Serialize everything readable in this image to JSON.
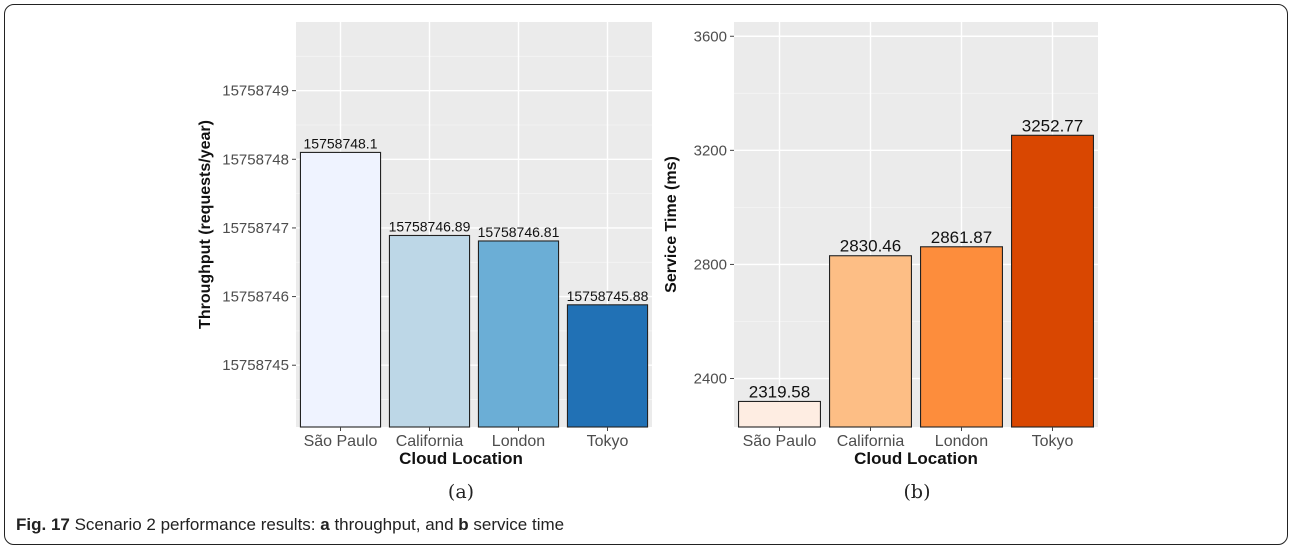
{
  "figure": {
    "caption_prefix": "Fig. 17",
    "caption_text_1": " Scenario 2 performance results: ",
    "caption_a": "a",
    "caption_text_2": " throughput, and ",
    "caption_b": "b",
    "caption_text_3": " service time",
    "panel_a_label": "(a)",
    "panel_b_label": "(b)"
  },
  "chart_data": [
    {
      "type": "bar",
      "title": "",
      "xlabel": "Cloud Location",
      "ylabel": "Throughput (requests/year)",
      "categories": [
        "São Paulo",
        "California",
        "London",
        "Tokyo"
      ],
      "values": [
        15758748.1,
        15758746.89,
        15758746.81,
        15758745.88
      ],
      "data_labels": [
        "15758748.1",
        "15758746.89",
        "15758746.81",
        "15758745.88"
      ],
      "ylim": [
        15758744.1,
        15758750.0
      ],
      "yticks": [
        15758745,
        15758746,
        15758747,
        15758748,
        15758749
      ],
      "ytick_labels": [
        "15758745",
        "15758746",
        "15758747",
        "15758748",
        "15758749"
      ],
      "colors": [
        "#eff3ff",
        "#bdd7e7",
        "#6baed6",
        "#2171b5"
      ],
      "grid": true,
      "background": "#ebebeb"
    },
    {
      "type": "bar",
      "title": "",
      "xlabel": "Cloud Location",
      "ylabel": "Service Time (ms)",
      "categories": [
        "São Paulo",
        "California",
        "London",
        "Tokyo"
      ],
      "values": [
        2319.58,
        2830.46,
        2861.87,
        3252.77
      ],
      "data_labels": [
        "2319.58",
        "2830.46",
        "2861.87",
        "3252.77"
      ],
      "ylim": [
        2230,
        3650
      ],
      "yticks": [
        2400,
        2800,
        3200,
        3600
      ],
      "ytick_labels": [
        "2400",
        "2800",
        "3200",
        "3600"
      ],
      "colors": [
        "#feede2",
        "#fdbe85",
        "#fd8d3c",
        "#d94701"
      ],
      "grid": true,
      "background": "#ebebeb"
    }
  ]
}
